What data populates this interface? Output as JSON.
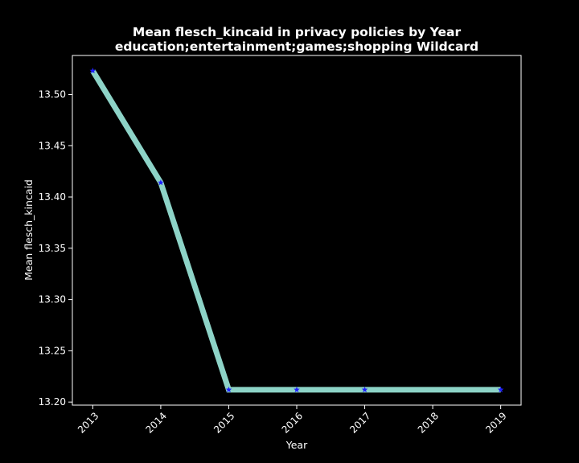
{
  "chart_data": {
    "type": "line",
    "title_lines": [
      "Mean flesch_kincaid in privacy policies by Year",
      "education;entertainment;games;shopping Wildcard"
    ],
    "xlabel": "Year",
    "ylabel": "Mean flesch_kincaid",
    "x": [
      "2013",
      "2014",
      "2015",
      "2016",
      "2017",
      "2018",
      "2019"
    ],
    "series": [
      {
        "x": [
          "2013",
          "2014",
          "2015",
          "2019"
        ],
        "values": [
          13.523,
          13.414,
          13.212,
          13.212
        ],
        "line_color": "#8dd3c7"
      }
    ],
    "markers": {
      "x": [
        "2013",
        "2014",
        "2015",
        "2016",
        "2017",
        "2019"
      ],
      "values": [
        13.523,
        13.414,
        13.212,
        13.212,
        13.212,
        13.212
      ],
      "marker": "star",
      "color": "#1f1fff"
    },
    "yticks": [
      "13.20",
      "13.25",
      "13.30",
      "13.35",
      "13.40",
      "13.45",
      "13.50"
    ],
    "ylim": [
      13.197,
      13.538
    ],
    "xlim": [
      2012.7,
      2019.3
    ],
    "grid": false,
    "legend": "none",
    "background": "#000000",
    "axis_color": "#ffffff"
  }
}
